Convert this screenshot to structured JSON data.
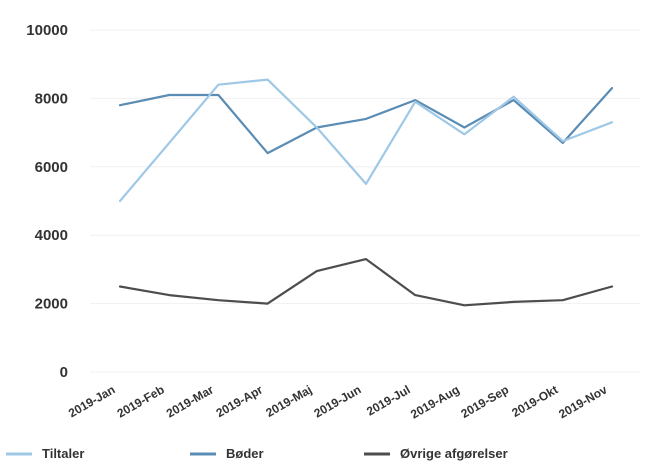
{
  "chart_data": {
    "type": "line",
    "categories": [
      "2019-Jan",
      "2019-Feb",
      "2019-Mar",
      "2019-Apr",
      "2019-Maj",
      "2019-Jun",
      "2019-Jul",
      "2019-Aug",
      "2019-Sep",
      "2019-Okt",
      "2019-Nov"
    ],
    "series": [
      {
        "name": "Tiltaler",
        "color": "#9ec8e6",
        "values": [
          5000,
          6700,
          8400,
          8550,
          7150,
          5500,
          7900,
          6950,
          8050,
          6750,
          7300
        ]
      },
      {
        "name": "Bøder",
        "color": "#5a8cb4",
        "values": [
          7800,
          8100,
          8100,
          6400,
          7150,
          7400,
          7950,
          7150,
          7950,
          6700,
          8300
        ]
      },
      {
        "name": "Øvrige afgørelser",
        "color": "#4d4d4d",
        "values": [
          2500,
          2250,
          2100,
          2000,
          2950,
          3300,
          2250,
          1950,
          2050,
          2100,
          2500
        ]
      }
    ],
    "yticks": [
      "0",
      "2000",
      "4000",
      "6000",
      "8000",
      "10000"
    ],
    "ylim": [
      0,
      10000
    ],
    "grid": true,
    "legend_position": "bottom-left"
  }
}
